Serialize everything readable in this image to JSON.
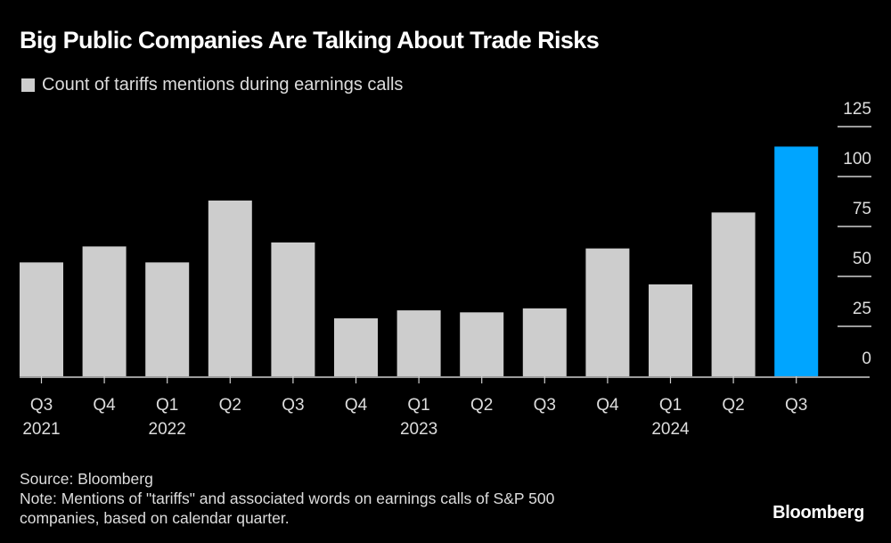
{
  "title": "Big Public Companies Are Talking About Trade Risks",
  "legend": [
    {
      "label": "Count of tariffs mentions during earnings calls",
      "color": "#cdcdcd"
    }
  ],
  "footer": {
    "source": "Source: Bloomberg",
    "note_line1": "Note: Mentions of \"tariffs\" and associated words on earnings calls of S&P 500",
    "note_line2": "companies, based on calendar quarter."
  },
  "brand": "Bloomberg",
  "chart_data": {
    "type": "bar",
    "title": "Big Public Companies Are Talking About Trade Risks",
    "xlabel": "",
    "ylabel": "",
    "ylim": [
      0,
      125
    ],
    "yticks": [
      0,
      25,
      50,
      75,
      100,
      125
    ],
    "y_axis_position": "right",
    "grid": false,
    "legend_position": "top-left",
    "categories": [
      "Q3 2021",
      "Q4 2021",
      "Q1 2022",
      "Q2 2022",
      "Q3 2022",
      "Q4 2022",
      "Q1 2023",
      "Q2 2023",
      "Q3 2023",
      "Q4 2023",
      "Q1 2024",
      "Q2 2024",
      "Q3 2024"
    ],
    "tick_labels": [
      {
        "quarter": "Q3",
        "year": "2021"
      },
      {
        "quarter": "Q4",
        "year": ""
      },
      {
        "quarter": "Q1",
        "year": "2022"
      },
      {
        "quarter": "Q2",
        "year": ""
      },
      {
        "quarter": "Q3",
        "year": ""
      },
      {
        "quarter": "Q4",
        "year": ""
      },
      {
        "quarter": "Q1",
        "year": "2023"
      },
      {
        "quarter": "Q2",
        "year": ""
      },
      {
        "quarter": "Q3",
        "year": ""
      },
      {
        "quarter": "Q4",
        "year": ""
      },
      {
        "quarter": "Q1",
        "year": "2024"
      },
      {
        "quarter": "Q2",
        "year": ""
      },
      {
        "quarter": "Q3",
        "year": ""
      }
    ],
    "series": [
      {
        "name": "Count of tariffs mentions during earnings calls",
        "values": [
          57,
          65,
          57,
          88,
          67,
          29,
          33,
          32,
          34,
          64,
          46,
          82,
          115
        ],
        "color": "#cdcdcd",
        "highlight_color": "#00a5ff",
        "highlight_index": 12
      }
    ]
  }
}
